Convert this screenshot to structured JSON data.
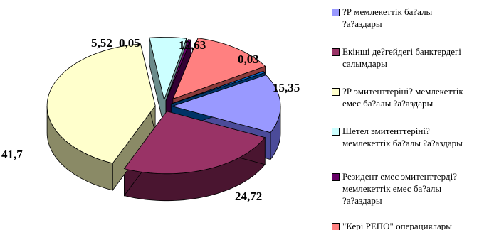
{
  "chart_data": {
    "type": "pie",
    "title": "",
    "slices": [
      {
        "label": "?Р мемлекеттік ба?алы ?а?аздары",
        "value": 15.35,
        "display": "15,35",
        "color": "#9999ff",
        "side": "#4b4b99"
      },
      {
        "label": "Екінші де?гейдегі банктердегі салымдары",
        "value": 24.72,
        "display": "24,72",
        "color": "#993366",
        "side": "#4a1530"
      },
      {
        "label": "?Р эмитенттеріні? мемлекеттік емес ба?алы ?а?аздары",
        "value": 41.7,
        "display": "41,7",
        "color": "#ffffcc",
        "side": "#8a8a66"
      },
      {
        "label": "Шетел эмитенттеріні? мемлекеттік ба?алы ?а?аздары",
        "value": 5.52,
        "display": "5,52",
        "color": "#ccffff",
        "side": "#6b8b8b"
      },
      {
        "label": "Резидент емес эмитенттерді? мемлекеттік емес ба?алы ?а?аздары",
        "value": 0.05,
        "display": "0,05",
        "color": "#660066",
        "side": "#330033"
      },
      {
        "label": "\"Кері РЕПО\" операциялары",
        "value": 12.63,
        "display": "12,63",
        "color": "#ff8080",
        "side": "#8b3a3a"
      },
      {
        "label": "",
        "value": 0.03,
        "display": "0,03",
        "color": "#0066cc",
        "side": "#003366"
      }
    ],
    "legend": {
      "position": "right",
      "entries": [
        {
          "lines": [
            "?Р мемлекеттік ба?алы",
            "?а?аздары"
          ],
          "color": "#9999ff"
        },
        {
          "lines": [
            "Екінші де?гейдегі банктердегі",
            "салымдары"
          ],
          "color": "#993366"
        },
        {
          "lines": [
            "?Р эмитенттеріні? мемлекеттік",
            "емес ба?алы ?а?аздары"
          ],
          "color": "#ffffcc"
        },
        {
          "lines": [
            "Шетел эмитенттеріні?",
            "мемлекеттік ба?алы ?а?аздары"
          ],
          "color": "#ccffff"
        },
        {
          "lines": [
            "Резидент емес эмитенттерді?",
            "мемлекеттік емес ба?алы",
            "?а?аздары"
          ],
          "color": "#660066"
        },
        {
          "lines": [
            "\"Кері РЕПО\" операциялары"
          ],
          "color": "#ff8080"
        }
      ]
    }
  }
}
